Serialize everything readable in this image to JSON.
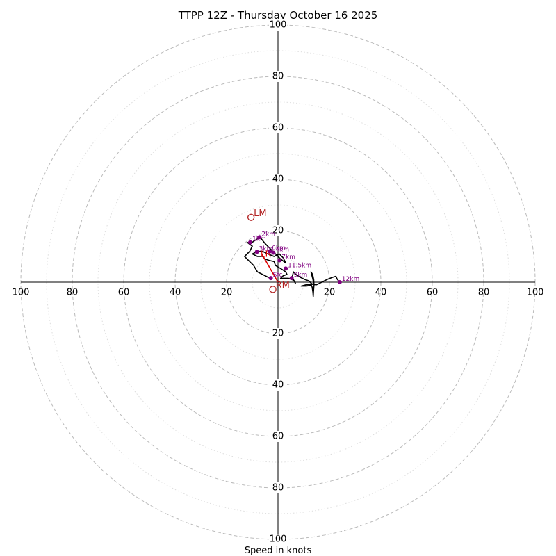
{
  "chart_data": {
    "type": "hodograph",
    "title": "TTPP 12Z - Thursday October 16 2025",
    "xlabel": "Speed in knots",
    "range_knots": [
      0,
      100
    ],
    "major_rings": [
      20,
      40,
      60,
      80,
      100
    ],
    "minor_rings": [
      10,
      30,
      50,
      70,
      90
    ],
    "axis_tick_labels": [
      20,
      40,
      60,
      80,
      100
    ],
    "grid": true,
    "colors": {
      "hodograph_line": "#000000",
      "height_marker": "#800080",
      "storm_motion": "#dd0000",
      "bunkers_marker": "#b22222",
      "major_ring": "#bbbbbb",
      "minor_ring": "#dddddd",
      "axis": "#000000"
    },
    "hodograph_trace": [
      [
        -2.6,
        1.6
      ],
      [
        -4,
        2
      ],
      [
        -6,
        3
      ],
      [
        -8,
        4
      ],
      [
        -9.5,
        6.5
      ],
      [
        -11,
        8
      ],
      [
        -13,
        10
      ],
      [
        -11,
        12
      ],
      [
        -10,
        14
      ],
      [
        -12,
        15.5
      ],
      [
        -10.8,
        15
      ],
      [
        -7,
        17.5
      ],
      [
        -5,
        15
      ],
      [
        -3,
        13
      ],
      [
        -1,
        11
      ],
      [
        1,
        9
      ],
      [
        3,
        7.5
      ],
      [
        2,
        9.5
      ],
      [
        0.5,
        11
      ],
      [
        -1.5,
        10
      ],
      [
        -4,
        11
      ],
      [
        -6,
        12
      ],
      [
        -8.2,
        11.8
      ],
      [
        -10,
        11
      ],
      [
        -8,
        10
      ],
      [
        -6,
        10
      ],
      [
        -5,
        9
      ],
      [
        -3.5,
        8.5
      ],
      [
        -1.5,
        8
      ],
      [
        -1,
        6.5
      ],
      [
        1.5,
        5
      ],
      [
        3,
        4
      ],
      [
        3.5,
        3
      ],
      [
        2,
        2.5
      ],
      [
        1,
        1.5
      ],
      [
        2.5,
        1.5
      ],
      [
        4,
        1.5
      ],
      [
        5.5,
        1
      ],
      [
        6.5,
        0.4
      ],
      [
        6.8,
        -0.6
      ],
      [
        5.5,
        2
      ],
      [
        6,
        4
      ],
      [
        7,
        3
      ],
      [
        8.5,
        2
      ],
      [
        10.5,
        1
      ],
      [
        12,
        0.5
      ],
      [
        13,
        -0.5
      ],
      [
        14,
        -1
      ],
      [
        13.5,
        1.5
      ],
      [
        12.8,
        4
      ],
      [
        13.5,
        3
      ],
      [
        13.9,
        1
      ],
      [
        14,
        -1
      ],
      [
        13.8,
        -3.5
      ],
      [
        13.7,
        -5.5
      ],
      [
        13.6,
        -4
      ],
      [
        13.3,
        -2
      ],
      [
        13,
        -1.2
      ],
      [
        11,
        -1.5
      ],
      [
        9,
        -1.5
      ],
      [
        11,
        -1
      ],
      [
        13,
        -0.8
      ],
      [
        15,
        -1
      ],
      [
        17,
        0
      ],
      [
        19,
        1
      ],
      [
        21,
        1.8
      ],
      [
        22.5,
        2.3
      ],
      [
        23,
        1.2
      ],
      [
        24,
        0
      ]
    ],
    "height_markers": [
      {
        "label": "Sfc",
        "u": -2.8,
        "v": 1.6
      },
      {
        "label": "1km",
        "u": -10.8,
        "v": 15.5
      },
      {
        "label": "2km",
        "u": -7.2,
        "v": 17.5
      },
      {
        "label": "3km",
        "u": -8.2,
        "v": 11.8
      },
      {
        "label": "4km",
        "u": -1.8,
        "v": 11.5
      },
      {
        "label": "6km",
        "u": -3.2,
        "v": 12
      },
      {
        "label": "7km",
        "u": 0.6,
        "v": 8.5
      },
      {
        "label": "9km",
        "u": 5.3,
        "v": 1.6
      },
      {
        "label": "11.5km",
        "u": 3,
        "v": 5.3
      },
      {
        "label": "12km",
        "u": 24,
        "v": 0
      }
    ],
    "bunkers": [
      {
        "label": "LM",
        "u": -10.5,
        "v": 25.2
      },
      {
        "label": "RM",
        "u": -2,
        "v": -2.8
      }
    ],
    "mean_wind": {
      "label": "LR",
      "u": -6.5,
      "v": 11
    },
    "storm_motion_vector": {
      "from": [
        -6.2,
        10.8
      ],
      "to": [
        0,
        0
      ]
    }
  }
}
